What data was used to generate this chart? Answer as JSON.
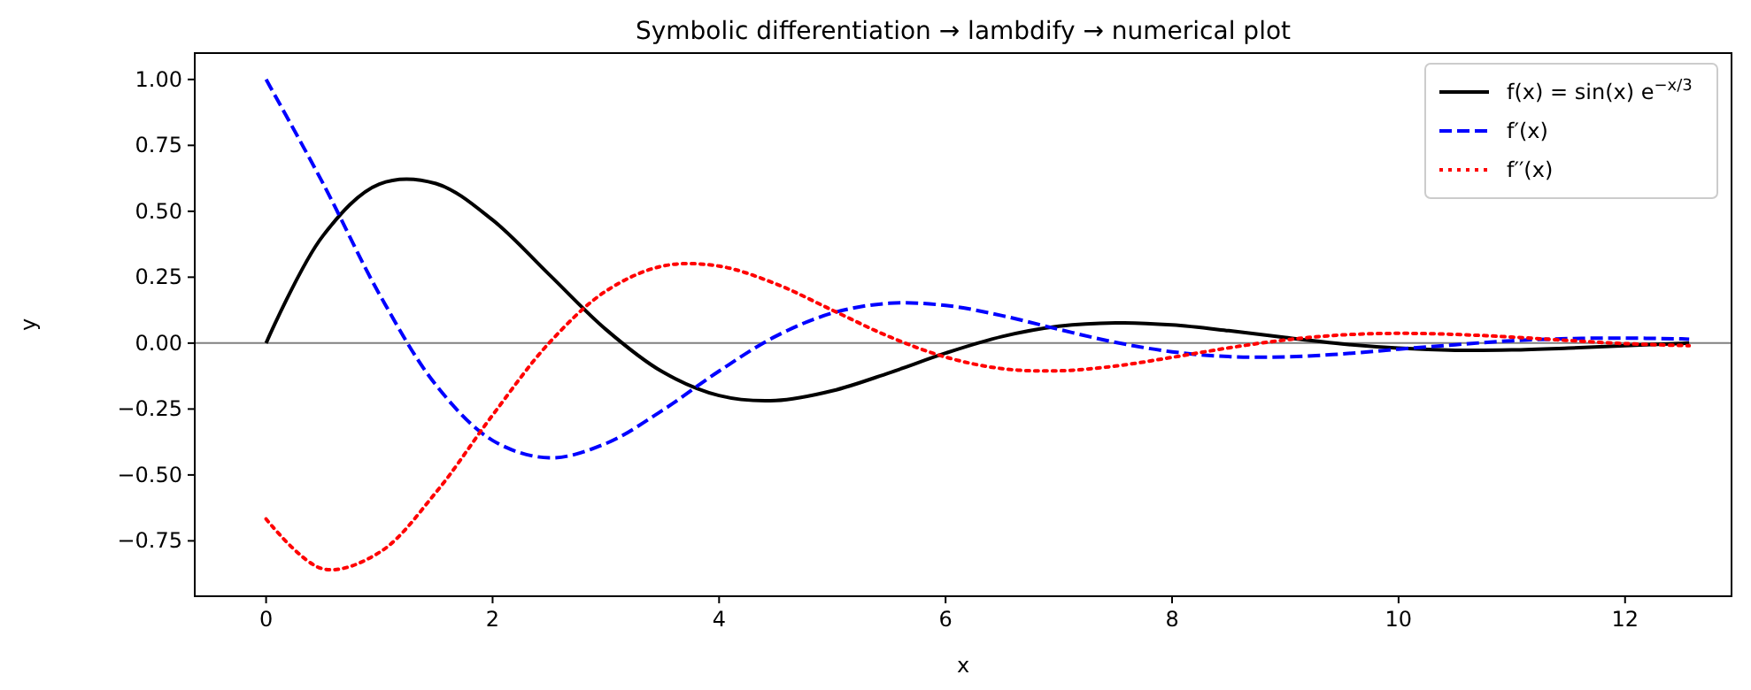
{
  "chart_data": {
    "type": "line",
    "title": "Symbolic differentiation → lambdify → numerical plot",
    "xlabel": "x",
    "ylabel": "y",
    "x": [
      0,
      0.5,
      1,
      1.5,
      2,
      2.5,
      3,
      3.5,
      4,
      4.5,
      5,
      5.5,
      6,
      6.5,
      7,
      7.5,
      8,
      8.5,
      9,
      9.5,
      10,
      10.5,
      11,
      11.5,
      12,
      12.5,
      12.566
    ],
    "series": [
      {
        "name": "f(x) = sin(x) e$^{−x/3}$",
        "color": "#000000",
        "line_style": "solid",
        "values": [
          0,
          0.406,
          0.603,
          0.605,
          0.467,
          0.26,
          0.052,
          -0.109,
          -0.199,
          -0.218,
          -0.181,
          -0.113,
          -0.038,
          0.025,
          0.064,
          0.077,
          0.069,
          0.047,
          0.021,
          -0.003,
          -0.019,
          -0.027,
          -0.026,
          -0.019,
          -0.01,
          -0.001,
          0
        ]
      },
      {
        "name": "f′(x)",
        "color": "#0000ff",
        "line_style": "dashed",
        "values": [
          1,
          0.608,
          0.186,
          -0.159,
          -0.369,
          -0.435,
          -0.381,
          -0.255,
          -0.106,
          0.026,
          0.114,
          0.151,
          0.143,
          0.104,
          0.052,
          0.003,
          -0.033,
          -0.051,
          -0.052,
          -0.041,
          -0.023,
          -0.006,
          0.009,
          0.017,
          0.019,
          0.016,
          0.015
        ]
      },
      {
        "name": "f′′(x)",
        "color": "#ff0000",
        "line_style": "dotted",
        "values": [
          -0.667,
          -0.856,
          -0.794,
          -0.566,
          -0.273,
          0.001,
          0.197,
          0.292,
          0.292,
          0.225,
          0.125,
          0.025,
          -0.053,
          -0.097,
          -0.105,
          -0.087,
          -0.054,
          -0.018,
          0.012,
          0.031,
          0.037,
          0.033,
          0.023,
          0.01,
          -0.002,
          -0.009,
          -0.01
        ]
      }
    ],
    "xlim": [
      -0.63,
      12.94
    ],
    "xticks": [
      0,
      2,
      4,
      6,
      8,
      10,
      12
    ],
    "ylim": [
      -0.96,
      1.1
    ],
    "yticks": [
      {
        "value": -0.75,
        "label": "−0.75"
      },
      {
        "value": -0.5,
        "label": "−0.50"
      },
      {
        "value": -0.25,
        "label": "−0.25"
      },
      {
        "value": 0,
        "label": "0.00"
      },
      {
        "value": 0.25,
        "label": "0.25"
      },
      {
        "value": 0.5,
        "label": "0.50"
      },
      {
        "value": 0.75,
        "label": "0.75"
      },
      {
        "value": 1,
        "label": "1.00"
      }
    ],
    "ref_lines": [
      {
        "axis": "y",
        "value": 0,
        "color": "#808080"
      }
    ],
    "grid": false,
    "legend": "top right",
    "marker": "none"
  }
}
